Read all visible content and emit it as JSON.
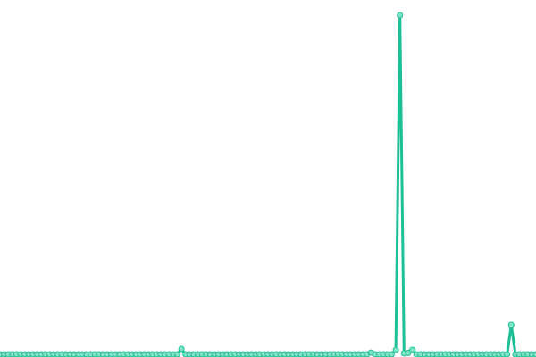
{
  "chart_data": {
    "type": "line",
    "series": [
      {
        "color": "#1dbf96",
        "marker_color": "#7fe3c6",
        "values": [
          0,
          0,
          0,
          0,
          0,
          0,
          0,
          0,
          0,
          0,
          0,
          0,
          0,
          0,
          0,
          0,
          0,
          0,
          0,
          0,
          0,
          0,
          0,
          0,
          0,
          0,
          0,
          0,
          0,
          0,
          0,
          0,
          0,
          0,
          0,
          0,
          0,
          0,
          0,
          0,
          0,
          0,
          0,
          0,
          1.6,
          0,
          0,
          0,
          0,
          0,
          0,
          0,
          0,
          0,
          0,
          0,
          0,
          0,
          0,
          0,
          0,
          0,
          0,
          0,
          0,
          0,
          0,
          0,
          0,
          0,
          0,
          0,
          0,
          0,
          0,
          0,
          0,
          0,
          0,
          0,
          0,
          0,
          0,
          0,
          0,
          0,
          0,
          0,
          0,
          0,
          0.5,
          0,
          0,
          0,
          0,
          0,
          1.3,
          100,
          0.3,
          0.4,
          1.3,
          0,
          0,
          0,
          0,
          0,
          0,
          0,
          0,
          0,
          0,
          0,
          0,
          0,
          0,
          0,
          0,
          0,
          0,
          0,
          0,
          0,
          0,
          0,
          8.7,
          0,
          0,
          0,
          0,
          0,
          0
        ]
      }
    ],
    "ylim": [
      0,
      100
    ]
  }
}
